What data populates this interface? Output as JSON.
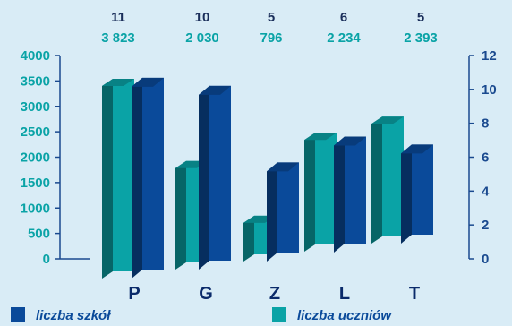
{
  "colors": {
    "background": "#d9ecf6",
    "axis": "#1a4a8f",
    "schools": "#0a4a9a",
    "students": "#0aa3a6",
    "top_count": "#1a2e5a",
    "top_value": "#0aa3a6",
    "left_tick": "#0aa3a6",
    "right_tick": "#1a4a8f",
    "category": "#0a2a6a"
  },
  "top_labels": [
    {
      "count": "11",
      "value": "3 823"
    },
    {
      "count": "10",
      "value": "2 030"
    },
    {
      "count": "5",
      "value": "796"
    },
    {
      "count": "6",
      "value": "2 234"
    },
    {
      "count": "5",
      "value": "2 393"
    }
  ],
  "left_ticks": [
    "4000",
    "3500",
    "3000",
    "2500",
    "2000",
    "1500",
    "1000",
    "500",
    "0"
  ],
  "right_ticks": [
    "12",
    "10",
    "8",
    "6",
    "4",
    "2",
    "0"
  ],
  "legend": {
    "schools": "liczba szkół",
    "students": "liczba uczniów"
  },
  "chart_data": {
    "type": "bar",
    "categories": [
      "P",
      "G",
      "Z",
      "L",
      "T"
    ],
    "series": [
      {
        "name": "liczba szkół",
        "axis": "right",
        "values": [
          11,
          10,
          5,
          6,
          5
        ]
      },
      {
        "name": "liczba uczniów",
        "axis": "left",
        "values": [
          3823,
          2030,
          796,
          2234,
          2393
        ]
      }
    ],
    "y_left": {
      "range": [
        0,
        4000
      ],
      "step": 500
    },
    "y_right": {
      "range": [
        0,
        12
      ],
      "step": 2
    },
    "grid": false,
    "legend_position": "bottom"
  }
}
